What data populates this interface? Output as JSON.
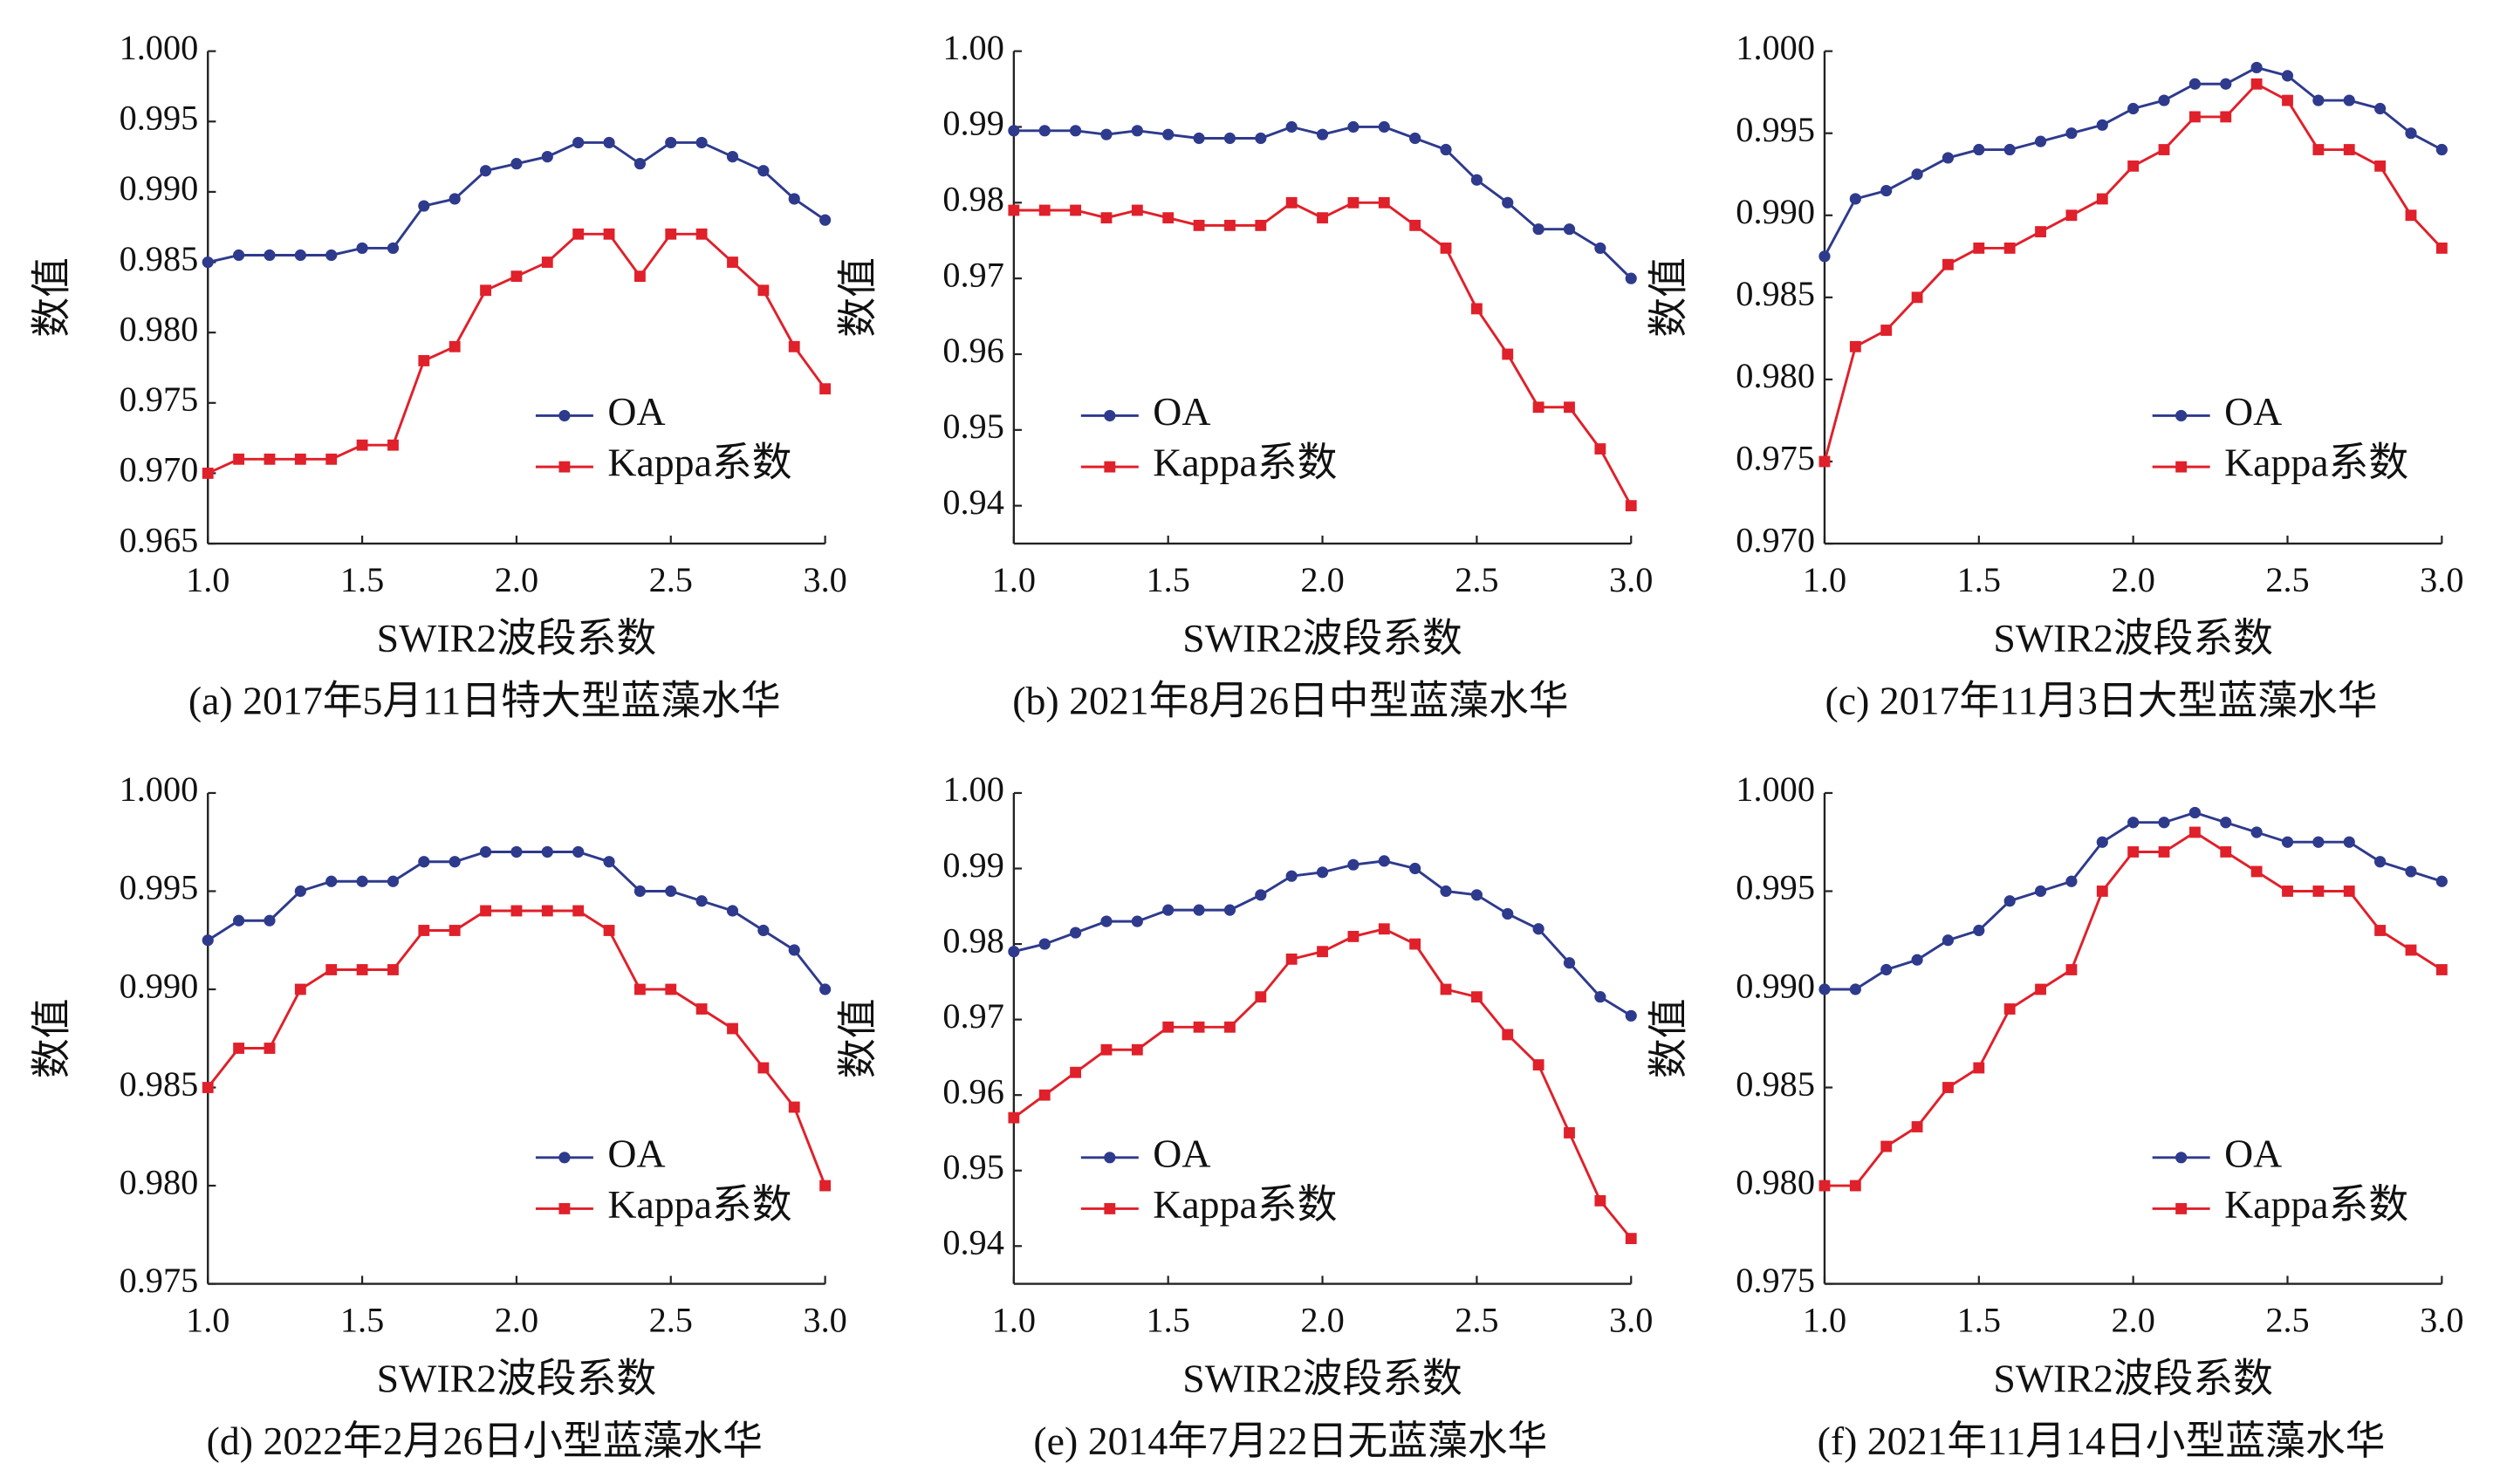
{
  "chart_data": [
    {
      "type": "line",
      "caption": "(a) 2017年5月11日特大型蓝藻水华",
      "xlabel": "SWIR2波段系数",
      "ylabel": "数值",
      "x": [
        1,
        1.1,
        1.2,
        1.3,
        1.4,
        1.5,
        1.6,
        1.7,
        1.8,
        1.9,
        2,
        2.1,
        2.2,
        2.3,
        2.4,
        2.5,
        2.6,
        2.7,
        2.8,
        2.9,
        3
      ],
      "xlim": [
        1,
        3
      ],
      "xticks": [
        {
          "value": 1,
          "label": "1.0"
        },
        1.5,
        {
          "value": 2,
          "label": "2.0"
        },
        2.5,
        {
          "value": 3,
          "label": "3.0"
        }
      ],
      "ylim": [
        0.965,
        1
      ],
      "yticks": [
        0.965,
        {
          "value": 0.97,
          "label": "0.970"
        },
        0.975,
        {
          "value": 0.98,
          "label": "0.980"
        },
        0.985,
        {
          "value": 0.99,
          "label": "0.990"
        },
        0.995,
        {
          "value": 1,
          "label": "1.000"
        }
      ],
      "legend": "lower right",
      "series": [
        {
          "name": "OA",
          "color": "#2e3a8c",
          "marker": "circle",
          "values": [
            0.985,
            0.9855,
            0.9855,
            0.9855,
            0.9855,
            0.986,
            0.986,
            0.989,
            0.9895,
            0.9915,
            0.992,
            0.9925,
            0.9935,
            0.9935,
            0.992,
            0.9935,
            0.9935,
            0.9925,
            0.9915,
            0.9895,
            0.988
          ]
        },
        {
          "name": "Kappa系数",
          "color": "#e0202a",
          "marker": "square",
          "values": [
            0.97,
            0.971,
            0.971,
            0.971,
            0.971,
            0.972,
            0.972,
            0.978,
            0.979,
            0.983,
            0.984,
            0.985,
            0.987,
            0.987,
            0.984,
            0.987,
            0.987,
            0.985,
            0.983,
            0.979,
            0.976
          ]
        }
      ]
    },
    {
      "type": "line",
      "caption": "(b) 2021年8月26日中型蓝藻水华",
      "xlabel": "SWIR2波段系数",
      "ylabel": "数值",
      "x": [
        1,
        1.1,
        1.2,
        1.3,
        1.4,
        1.5,
        1.6,
        1.7,
        1.8,
        1.9,
        2,
        2.1,
        2.2,
        2.3,
        2.4,
        2.5,
        2.6,
        2.7,
        2.8,
        2.9,
        3
      ],
      "xlim": [
        1,
        3
      ],
      "xticks": [
        {
          "value": 1,
          "label": "1.0"
        },
        1.5,
        {
          "value": 2,
          "label": "2.0"
        },
        2.5,
        {
          "value": 3,
          "label": "3.0"
        }
      ],
      "ylim": [
        0.935,
        1
      ],
      "yticks": [
        0.94,
        0.95,
        0.96,
        0.97,
        0.98,
        0.99,
        {
          "value": 1,
          "label": "1.00"
        }
      ],
      "legend": "lower left",
      "series": [
        {
          "name": "OA",
          "color": "#2e3a8c",
          "marker": "circle",
          "values": [
            0.9895,
            0.9895,
            0.9895,
            0.989,
            0.9895,
            0.989,
            0.9885,
            0.9885,
            0.9885,
            0.99,
            0.989,
            0.99,
            0.99,
            0.9885,
            0.987,
            0.983,
            0.98,
            0.9765,
            0.9765,
            0.974,
            0.97
          ]
        },
        {
          "name": "Kappa系数",
          "color": "#e0202a",
          "marker": "square",
          "values": [
            0.979,
            0.979,
            0.979,
            0.978,
            0.979,
            0.978,
            0.977,
            0.977,
            0.977,
            0.98,
            0.978,
            0.98,
            0.98,
            0.977,
            0.974,
            0.966,
            0.96,
            0.953,
            0.953,
            0.9475,
            0.94
          ]
        }
      ]
    },
    {
      "type": "line",
      "caption": "(c) 2017年11月3日大型蓝藻水华",
      "xlabel": "SWIR2波段系数",
      "ylabel": "数值",
      "x": [
        1,
        1.1,
        1.2,
        1.3,
        1.4,
        1.5,
        1.6,
        1.7,
        1.8,
        1.9,
        2,
        2.1,
        2.2,
        2.3,
        2.4,
        2.5,
        2.6,
        2.7,
        2.8,
        2.9,
        3
      ],
      "xlim": [
        1,
        3
      ],
      "xticks": [
        {
          "value": 1,
          "label": "1.0"
        },
        1.5,
        {
          "value": 2,
          "label": "2.0"
        },
        2.5,
        {
          "value": 3,
          "label": "3.0"
        }
      ],
      "ylim": [
        0.97,
        1
      ],
      "yticks": [
        {
          "value": 0.97,
          "label": "0.970"
        },
        0.975,
        {
          "value": 0.98,
          "label": "0.980"
        },
        0.985,
        {
          "value": 0.99,
          "label": "0.990"
        },
        0.995,
        {
          "value": 1,
          "label": "1.000"
        }
      ],
      "legend": "lower right",
      "series": [
        {
          "name": "OA",
          "color": "#2e3a8c",
          "marker": "circle",
          "values": [
            0.9875,
            0.991,
            0.9915,
            0.9925,
            0.9935,
            0.994,
            0.994,
            0.9945,
            0.995,
            0.9955,
            0.9965,
            0.997,
            0.998,
            0.998,
            0.999,
            0.9985,
            0.997,
            0.997,
            0.9965,
            0.995,
            0.994
          ]
        },
        {
          "name": "Kappa系数",
          "color": "#e0202a",
          "marker": "square",
          "values": [
            0.975,
            0.982,
            0.983,
            0.985,
            0.987,
            0.988,
            0.988,
            0.989,
            0.99,
            0.991,
            0.993,
            0.994,
            0.996,
            0.996,
            0.998,
            0.997,
            0.994,
            0.994,
            0.993,
            0.99,
            0.988
          ]
        }
      ]
    },
    {
      "type": "line",
      "caption": "(d) 2022年2月26日小型蓝藻水华",
      "xlabel": "SWIR2波段系数",
      "ylabel": "数值",
      "x": [
        1,
        1.1,
        1.2,
        1.3,
        1.4,
        1.5,
        1.6,
        1.7,
        1.8,
        1.9,
        2,
        2.1,
        2.2,
        2.3,
        2.4,
        2.5,
        2.6,
        2.7,
        2.8,
        2.9,
        3
      ],
      "xlim": [
        1,
        3
      ],
      "xticks": [
        {
          "value": 1,
          "label": "1.0"
        },
        1.5,
        {
          "value": 2,
          "label": "2.0"
        },
        2.5,
        {
          "value": 3,
          "label": "3.0"
        }
      ],
      "ylim": [
        0.975,
        1
      ],
      "yticks": [
        0.975,
        {
          "value": 0.98,
          "label": "0.980"
        },
        0.985,
        {
          "value": 0.99,
          "label": "0.990"
        },
        0.995,
        {
          "value": 1,
          "label": "1.000"
        }
      ],
      "legend": "lower right",
      "series": [
        {
          "name": "OA",
          "color": "#2e3a8c",
          "marker": "circle",
          "values": [
            0.9925,
            0.9935,
            0.9935,
            0.995,
            0.9955,
            0.9955,
            0.9955,
            0.9965,
            0.9965,
            0.997,
            0.997,
            0.997,
            0.997,
            0.9965,
            0.995,
            0.995,
            0.9945,
            0.994,
            0.993,
            0.992,
            0.99
          ]
        },
        {
          "name": "Kappa系数",
          "color": "#e0202a",
          "marker": "square",
          "values": [
            0.985,
            0.987,
            0.987,
            0.99,
            0.991,
            0.991,
            0.991,
            0.993,
            0.993,
            0.994,
            0.994,
            0.994,
            0.994,
            0.993,
            0.99,
            0.99,
            0.989,
            0.988,
            0.986,
            0.984,
            0.98
          ]
        }
      ]
    },
    {
      "type": "line",
      "caption": "(e) 2014年7月22日无蓝藻水华",
      "xlabel": "SWIR2波段系数",
      "ylabel": "数值",
      "x": [
        1,
        1.1,
        1.2,
        1.3,
        1.4,
        1.5,
        1.6,
        1.7,
        1.8,
        1.9,
        2,
        2.1,
        2.2,
        2.3,
        2.4,
        2.5,
        2.6,
        2.7,
        2.8,
        2.9,
        3
      ],
      "xlim": [
        1,
        3
      ],
      "xticks": [
        {
          "value": 1,
          "label": "1.0"
        },
        1.5,
        {
          "value": 2,
          "label": "2.0"
        },
        2.5,
        {
          "value": 3,
          "label": "3.0"
        }
      ],
      "ylim": [
        0.935,
        1
      ],
      "yticks": [
        0.94,
        0.95,
        0.96,
        0.97,
        0.98,
        0.99,
        {
          "value": 1,
          "label": "1.00"
        }
      ],
      "legend": "lower left",
      "series": [
        {
          "name": "OA",
          "color": "#2e3a8c",
          "marker": "circle",
          "values": [
            0.979,
            0.98,
            0.9815,
            0.983,
            0.983,
            0.9845,
            0.9845,
            0.9845,
            0.9865,
            0.989,
            0.9895,
            0.9905,
            0.991,
            0.99,
            0.987,
            0.9865,
            0.984,
            0.982,
            0.9775,
            0.973,
            0.9705
          ]
        },
        {
          "name": "Kappa系数",
          "color": "#e0202a",
          "marker": "square",
          "values": [
            0.957,
            0.96,
            0.963,
            0.966,
            0.966,
            0.969,
            0.969,
            0.969,
            0.973,
            0.978,
            0.979,
            0.981,
            0.982,
            0.98,
            0.974,
            0.973,
            0.968,
            0.964,
            0.955,
            0.946,
            0.941
          ]
        }
      ]
    },
    {
      "type": "line",
      "caption": "(f) 2021年11月14日小型蓝藻水华",
      "xlabel": "SWIR2波段系数",
      "ylabel": "数值",
      "x": [
        1,
        1.1,
        1.2,
        1.3,
        1.4,
        1.5,
        1.6,
        1.7,
        1.8,
        1.9,
        2,
        2.1,
        2.2,
        2.3,
        2.4,
        2.5,
        2.6,
        2.7,
        2.8,
        2.9,
        3
      ],
      "xlim": [
        1,
        3
      ],
      "xticks": [
        {
          "value": 1,
          "label": "1.0"
        },
        1.5,
        {
          "value": 2,
          "label": "2.0"
        },
        2.5,
        {
          "value": 3,
          "label": "3.0"
        }
      ],
      "ylim": [
        0.975,
        1
      ],
      "yticks": [
        0.975,
        {
          "value": 0.98,
          "label": "0.980"
        },
        0.985,
        {
          "value": 0.99,
          "label": "0.990"
        },
        0.995,
        {
          "value": 1,
          "label": "1.000"
        }
      ],
      "legend": "lower right",
      "series": [
        {
          "name": "OA",
          "color": "#2e3a8c",
          "marker": "circle",
          "values": [
            0.99,
            0.99,
            0.991,
            0.9915,
            0.9925,
            0.993,
            0.9945,
            0.995,
            0.9955,
            0.9975,
            0.9985,
            0.9985,
            0.999,
            0.9985,
            0.998,
            0.9975,
            0.9975,
            0.9975,
            0.9965,
            0.996,
            0.9955
          ]
        },
        {
          "name": "Kappa系数",
          "color": "#e0202a",
          "marker": "square",
          "values": [
            0.98,
            0.98,
            0.982,
            0.983,
            0.985,
            0.986,
            0.989,
            0.99,
            0.991,
            0.995,
            0.997,
            0.997,
            0.998,
            0.997,
            0.996,
            0.995,
            0.995,
            0.995,
            0.993,
            0.992,
            0.991
          ]
        }
      ]
    }
  ]
}
